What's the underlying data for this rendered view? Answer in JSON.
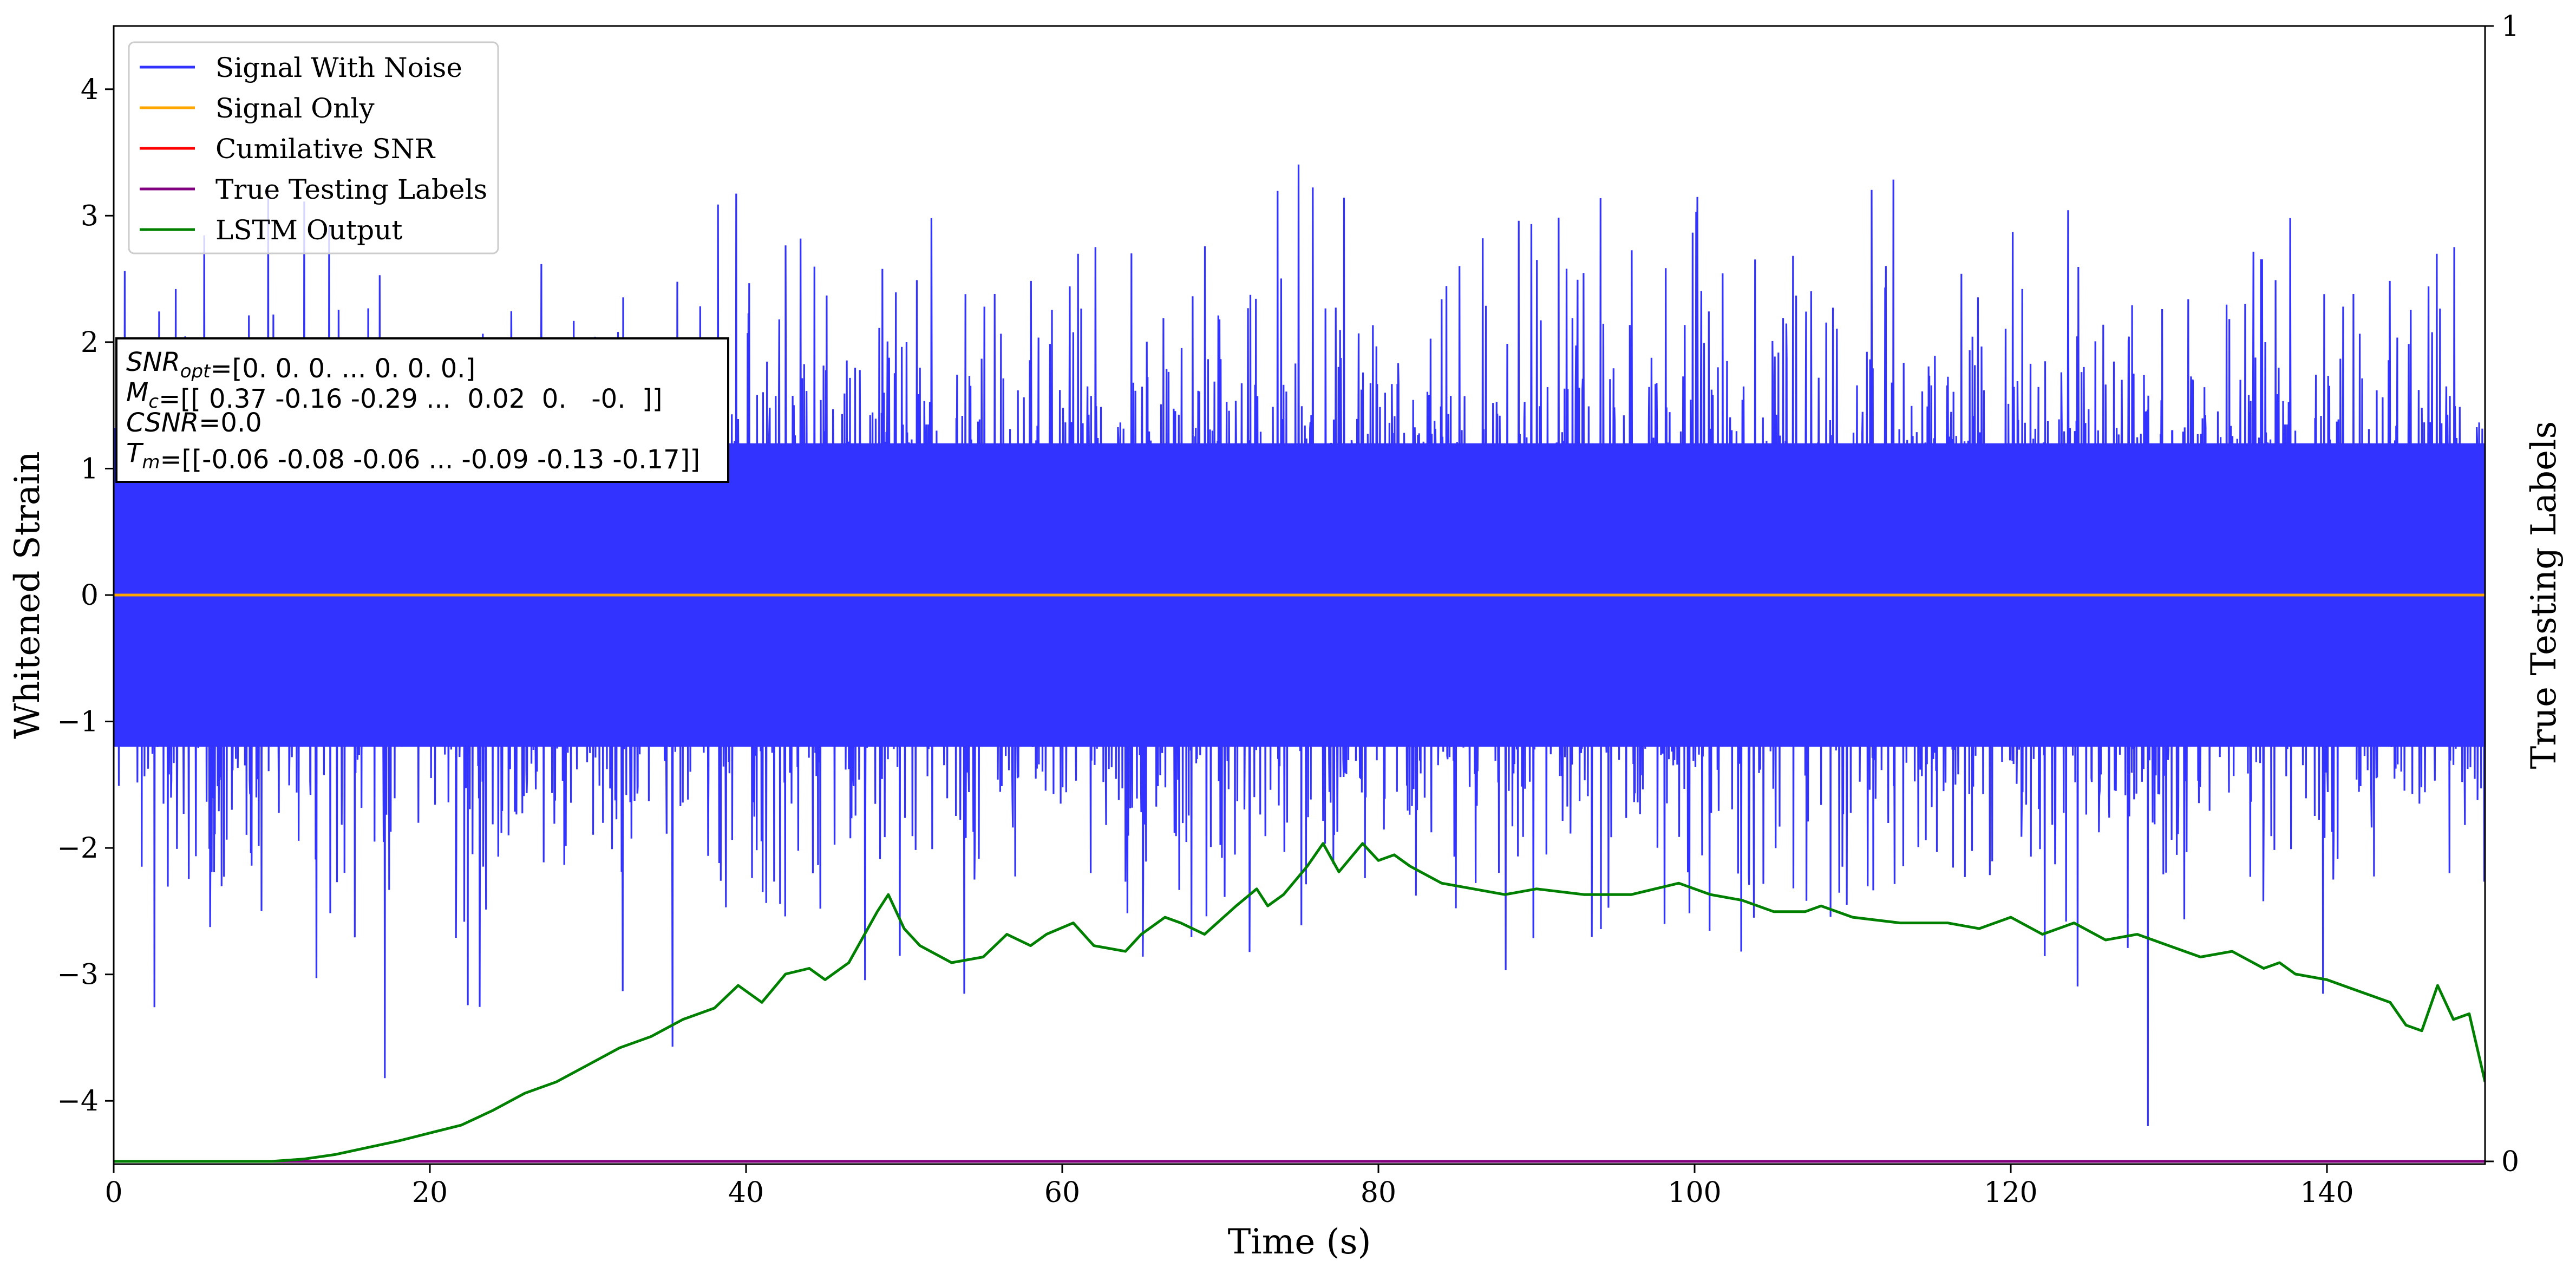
{
  "chart_data": {
    "type": "line",
    "xlabel": "Time (s)",
    "ylabel": "Whitened Strain",
    "y2label": "True Testing Labels",
    "xlim": [
      0,
      150
    ],
    "ylim": [
      -4.5,
      4.5
    ],
    "y2lim": [
      0,
      1
    ],
    "xticks": [
      0,
      20,
      40,
      60,
      80,
      100,
      120,
      140
    ],
    "yticks": [
      -4,
      -3,
      -2,
      -1,
      0,
      1,
      2,
      3,
      4
    ],
    "y2ticks": [
      0,
      1
    ],
    "grid": false,
    "legend_position": "top-left",
    "series": [
      {
        "name": "Signal With Noise",
        "color": "#3333ff",
        "axis": "left",
        "kind": "noise",
        "envelope_low": -4.2,
        "envelope_high": 3.55,
        "core": 1.2
      },
      {
        "name": "Signal Only",
        "color": "#ffa500",
        "axis": "left",
        "kind": "line",
        "x": [
          0,
          150
        ],
        "y": [
          0,
          0
        ]
      },
      {
        "name": "Cumilative SNR",
        "color": "#ff0000",
        "axis": "right",
        "kind": "line",
        "x": [
          0,
          150
        ],
        "y": [
          0,
          0
        ]
      },
      {
        "name": "True Testing Labels",
        "color": "#800080",
        "axis": "right",
        "kind": "line",
        "x": [
          0,
          150
        ],
        "y": [
          0,
          0
        ]
      },
      {
        "name": "LSTM Output",
        "color": "#008000",
        "axis": "right",
        "kind": "line",
        "x": [
          0,
          10,
          12,
          14,
          16,
          18,
          20,
          22,
          24,
          26,
          28,
          30,
          32,
          34,
          36,
          38,
          39.5,
          41,
          42.5,
          44,
          45,
          46.5,
          47.5,
          48.3,
          49,
          50,
          51,
          53,
          55,
          56.5,
          58,
          59,
          60.7,
          62,
          64,
          65,
          66.5,
          67.5,
          69,
          71,
          72.3,
          73,
          74,
          75.5,
          76.5,
          77.5,
          79,
          80,
          81,
          82,
          84,
          86,
          88,
          90,
          93,
          96,
          99,
          101,
          103,
          105,
          107,
          108,
          110,
          113,
          116,
          118,
          120,
          122,
          124,
          126,
          128,
          130,
          132,
          134,
          136,
          137,
          138,
          140,
          142,
          143,
          144,
          145,
          146,
          147,
          148,
          149,
          150
        ],
        "y": [
          0.0,
          0.0,
          0.002,
          0.006,
          0.012,
          0.018,
          0.025,
          0.032,
          0.045,
          0.06,
          0.07,
          0.085,
          0.1,
          0.11,
          0.125,
          0.135,
          0.155,
          0.14,
          0.165,
          0.17,
          0.16,
          0.175,
          0.2,
          0.22,
          0.235,
          0.205,
          0.19,
          0.175,
          0.18,
          0.2,
          0.19,
          0.2,
          0.21,
          0.19,
          0.185,
          0.2,
          0.215,
          0.21,
          0.2,
          0.225,
          0.24,
          0.225,
          0.235,
          0.26,
          0.28,
          0.255,
          0.28,
          0.265,
          0.27,
          0.26,
          0.245,
          0.24,
          0.235,
          0.24,
          0.235,
          0.235,
          0.245,
          0.235,
          0.23,
          0.22,
          0.22,
          0.225,
          0.215,
          0.21,
          0.21,
          0.205,
          0.215,
          0.2,
          0.21,
          0.195,
          0.2,
          0.19,
          0.18,
          0.185,
          0.17,
          0.175,
          0.165,
          0.16,
          0.15,
          0.145,
          0.14,
          0.12,
          0.115,
          0.155,
          0.125,
          0.13,
          0.07
        ]
      }
    ],
    "annotation_lines": [
      "$SNR_{opt}$=[0. 0. 0. ... 0. 0. 0.]",
      "$M_c$=[[ 0.37 -0.16 -0.29 ...  0.02  0.   -0.  ]]",
      "$CSNR$=0.0",
      "$T_m$=[[-0.06 -0.08 -0.06 ... -0.09 -0.13 -0.17]]"
    ]
  }
}
